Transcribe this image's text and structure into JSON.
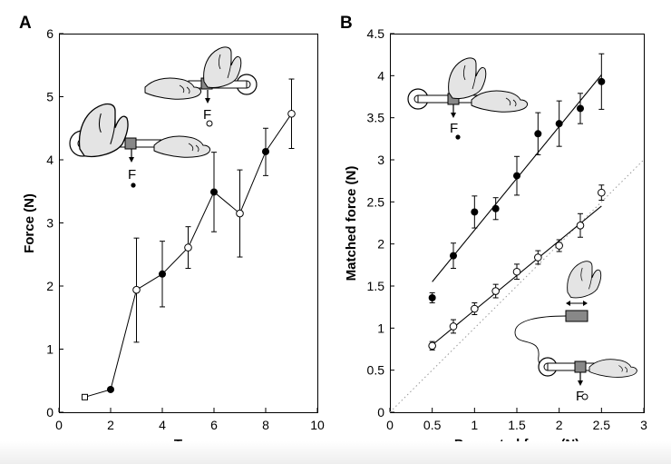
{
  "chart_data": [
    {
      "panel": "A",
      "type": "line",
      "xlabel": "Turn",
      "ylabel": "Force (N)",
      "xlim": [
        0,
        10
      ],
      "ylim": [
        0,
        6
      ],
      "xticks": [
        0,
        2,
        4,
        6,
        8,
        10
      ],
      "yticks": [
        0,
        1,
        2,
        3,
        4,
        5,
        6
      ],
      "grid": false,
      "series": [
        {
          "x": [
            1,
            2,
            3,
            4,
            5,
            6,
            7,
            8,
            9
          ],
          "y": [
            0.24,
            0.36,
            1.94,
            2.19,
            2.61,
            3.49,
            3.15,
            4.13,
            4.73
          ],
          "err_low": [
            0,
            0,
            0.83,
            0.52,
            0.33,
            0.63,
            0.69,
            0.38,
            0.55
          ],
          "err_high": [
            0,
            0,
            0.82,
            0.52,
            0.33,
            0.63,
            0.69,
            0.37,
            0.55
          ],
          "markers": [
            "square-open",
            "circle-filled",
            "circle-open",
            "circle-filled",
            "circle-open",
            "circle-filled",
            "circle-open",
            "circle-filled",
            "circle-open"
          ]
        }
      ],
      "illustration_labels": [
        "F",
        "F"
      ]
    },
    {
      "panel": "B",
      "type": "scatter",
      "xlabel": "Presented force (N)",
      "ylabel": "Matched force (N)",
      "xlim": [
        0,
        3
      ],
      "ylim": [
        0,
        4.5
      ],
      "xticks": [
        0,
        0.5,
        1,
        1.5,
        2,
        2.5,
        3
      ],
      "yticks": [
        0,
        0.5,
        1,
        1.5,
        2,
        2.5,
        3,
        3.5,
        4,
        4.5
      ],
      "grid": false,
      "series": [
        {
          "marker": "circle-filled",
          "x": [
            0.5,
            0.75,
            1.0,
            1.25,
            1.5,
            1.75,
            2.0,
            2.25,
            2.5
          ],
          "y": [
            1.36,
            1.86,
            2.38,
            2.42,
            2.81,
            3.31,
            3.43,
            3.61,
            3.93
          ],
          "err": [
            0.06,
            0.15,
            0.19,
            0.13,
            0.23,
            0.25,
            0.27,
            0.18,
            0.33
          ],
          "fit": {
            "x": [
              0.5,
              2.5
            ],
            "y": [
              1.55,
              4.01
            ]
          }
        },
        {
          "marker": "circle-open",
          "x": [
            0.5,
            0.75,
            1.0,
            1.25,
            1.5,
            1.75,
            2.0,
            2.25,
            2.5
          ],
          "y": [
            0.79,
            1.02,
            1.23,
            1.44,
            1.67,
            1.84,
            1.98,
            2.22,
            2.61
          ],
          "err": [
            0.05,
            0.08,
            0.07,
            0.08,
            0.09,
            0.08,
            0.07,
            0.14,
            0.09
          ],
          "fit": {
            "x": [
              0.5,
              2.5
            ],
            "y": [
              0.8,
              2.45
            ]
          }
        }
      ],
      "reference_line": {
        "style": "dotted",
        "x": [
          0,
          3
        ],
        "y": [
          0,
          3
        ]
      },
      "illustration_labels": [
        "F",
        "F"
      ]
    }
  ],
  "panels": {
    "a": {
      "label": "A",
      "illus_label_1": "F",
      "illus_label_2": "F"
    },
    "b": {
      "label": "B",
      "illus_label_1": "F",
      "illus_label_2": "F"
    }
  },
  "colors": {
    "ink": "#000000",
    "hand_fill": "#e4e4e4",
    "block_fill": "#888888",
    "reference": "#999999"
  }
}
